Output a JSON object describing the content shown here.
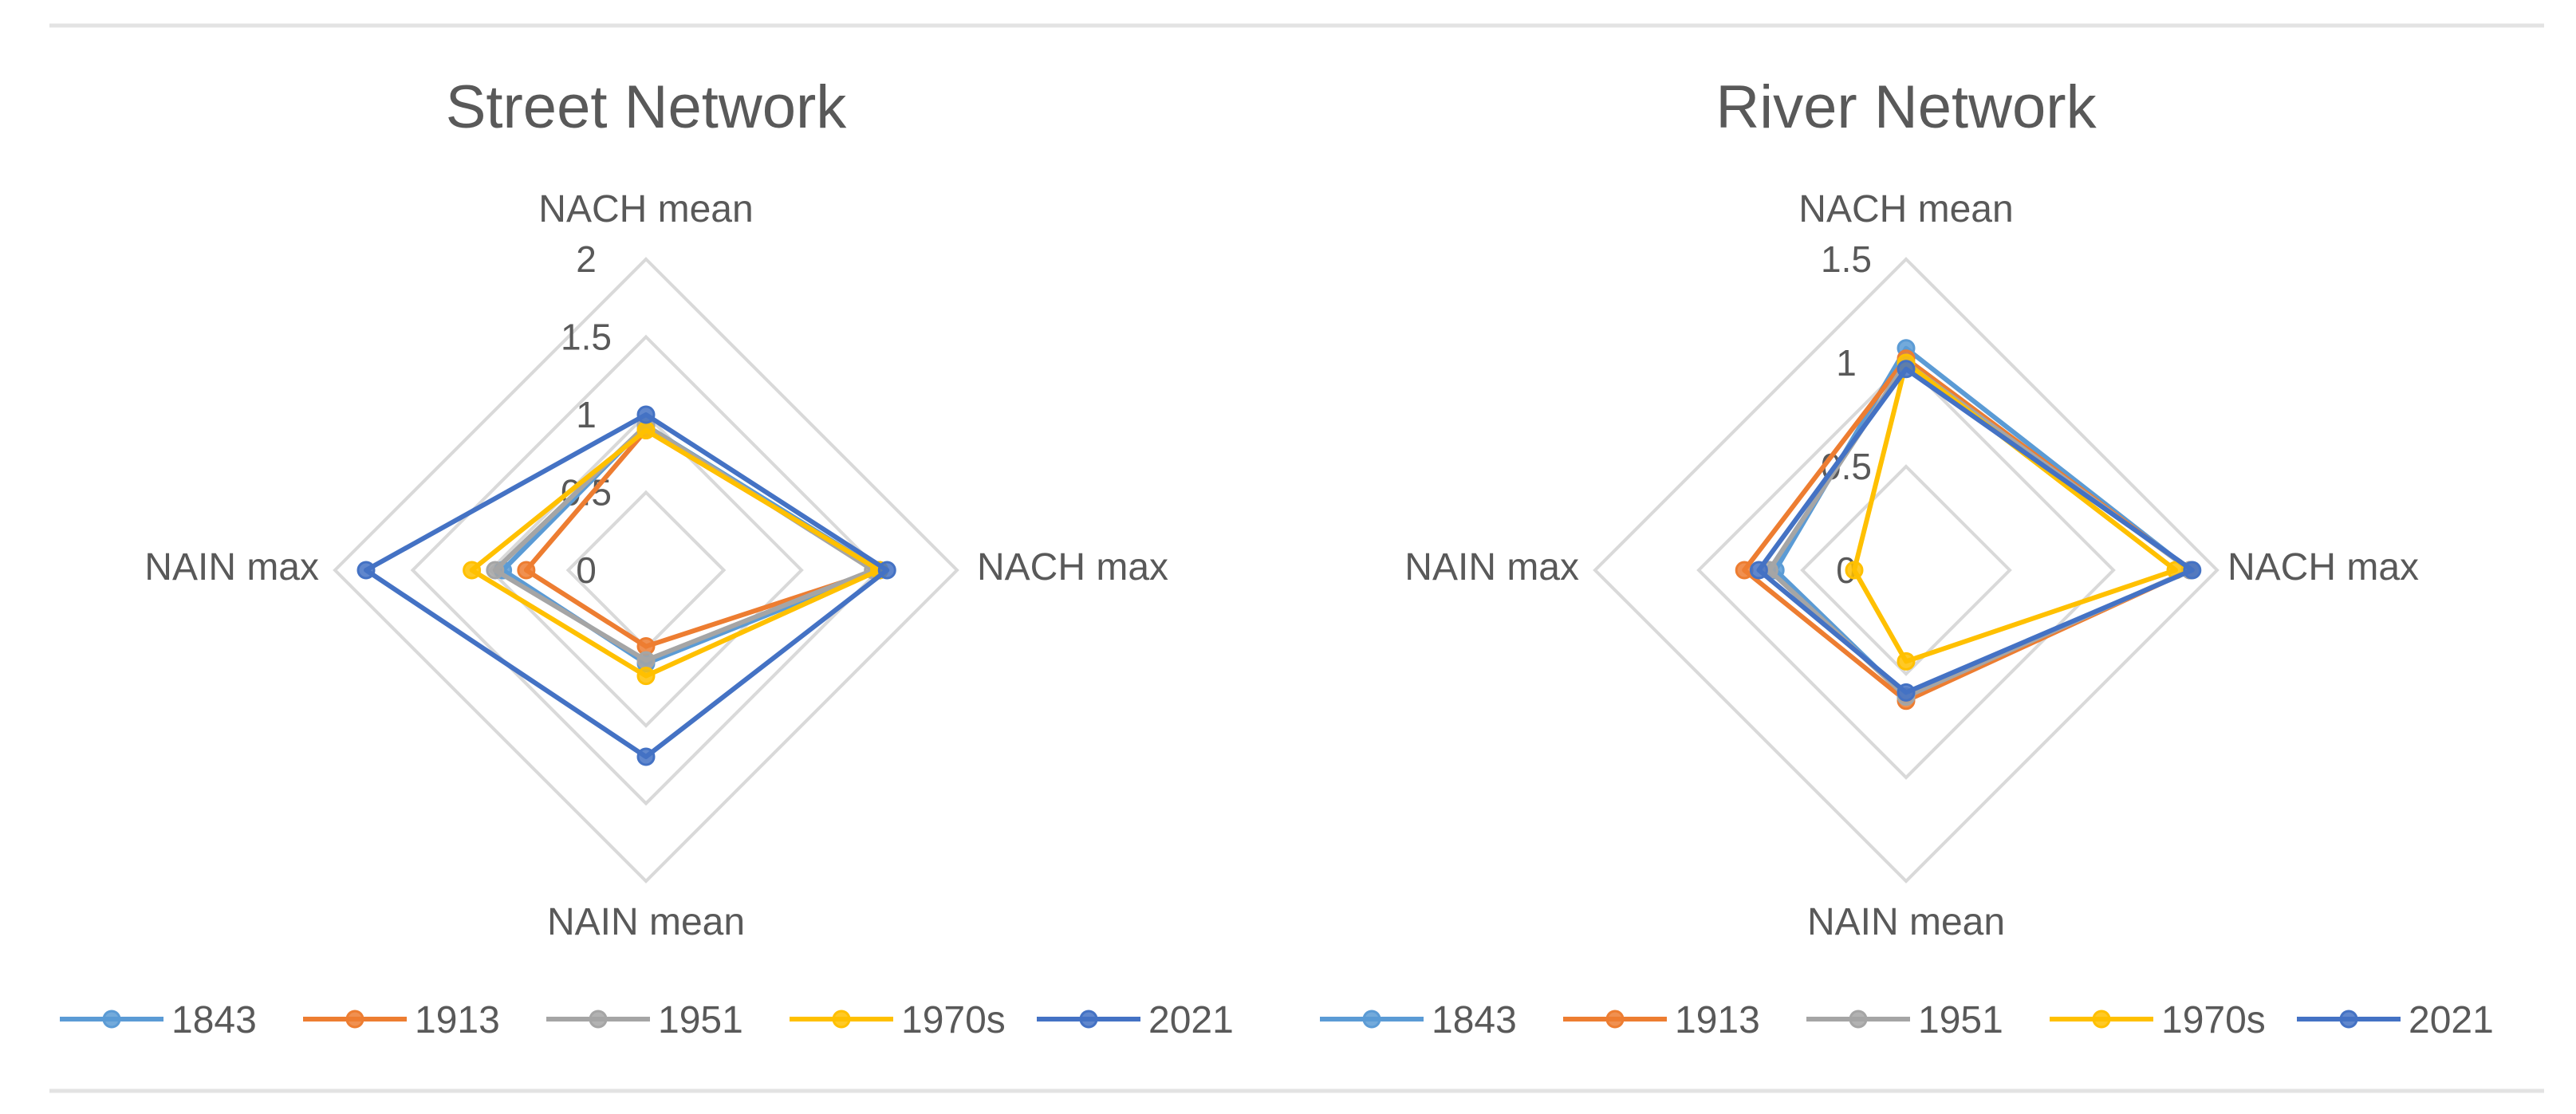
{
  "chart_data": [
    {
      "type": "radar",
      "title": "Street Network",
      "axes": [
        "NACH mean",
        "NACH max",
        "NAIN mean",
        "NAIN max"
      ],
      "ticks": [
        "0",
        "0.5",
        "1",
        "1.5",
        "2"
      ],
      "range": [
        0,
        2
      ],
      "legend_position": "bottom",
      "series": [
        {
          "name": "1843",
          "color": "#5b9bd5",
          "values": [
            0.93,
            1.5,
            0.6,
            0.92
          ]
        },
        {
          "name": "1913",
          "color": "#ed7d31",
          "values": [
            0.9,
            1.5,
            0.49,
            0.77
          ]
        },
        {
          "name": "1951",
          "color": "#a5a5a5",
          "values": [
            0.93,
            1.46,
            0.58,
            0.97
          ]
        },
        {
          "name": "1970s",
          "color": "#ffc000",
          "values": [
            0.9,
            1.5,
            0.68,
            1.12
          ]
        },
        {
          "name": "2021",
          "color": "#4472c4",
          "values": [
            1.0,
            1.55,
            1.2,
            1.8
          ]
        }
      ]
    },
    {
      "type": "radar",
      "title": "River Network",
      "axes": [
        "NACH mean",
        "NACH max",
        "NAIN mean",
        "NAIN max"
      ],
      "ticks": [
        "0",
        "0.5",
        "1",
        "1.5"
      ],
      "range": [
        0,
        1.5
      ],
      "legend_position": "bottom",
      "series": [
        {
          "name": "1843",
          "color": "#5b9bd5",
          "values": [
            1.07,
            1.37,
            0.61,
            0.63
          ]
        },
        {
          "name": "1913",
          "color": "#ed7d31",
          "values": [
            1.02,
            1.37,
            0.63,
            0.78
          ]
        },
        {
          "name": "1951",
          "color": "#a5a5a5",
          "values": [
            1.0,
            1.37,
            0.61,
            0.66
          ]
        },
        {
          "name": "1970s",
          "color": "#ffc000",
          "values": [
            1.0,
            1.3,
            0.44,
            0.25
          ]
        },
        {
          "name": "2021",
          "color": "#4472c4",
          "values": [
            0.97,
            1.38,
            0.59,
            0.71
          ]
        }
      ]
    }
  ]
}
